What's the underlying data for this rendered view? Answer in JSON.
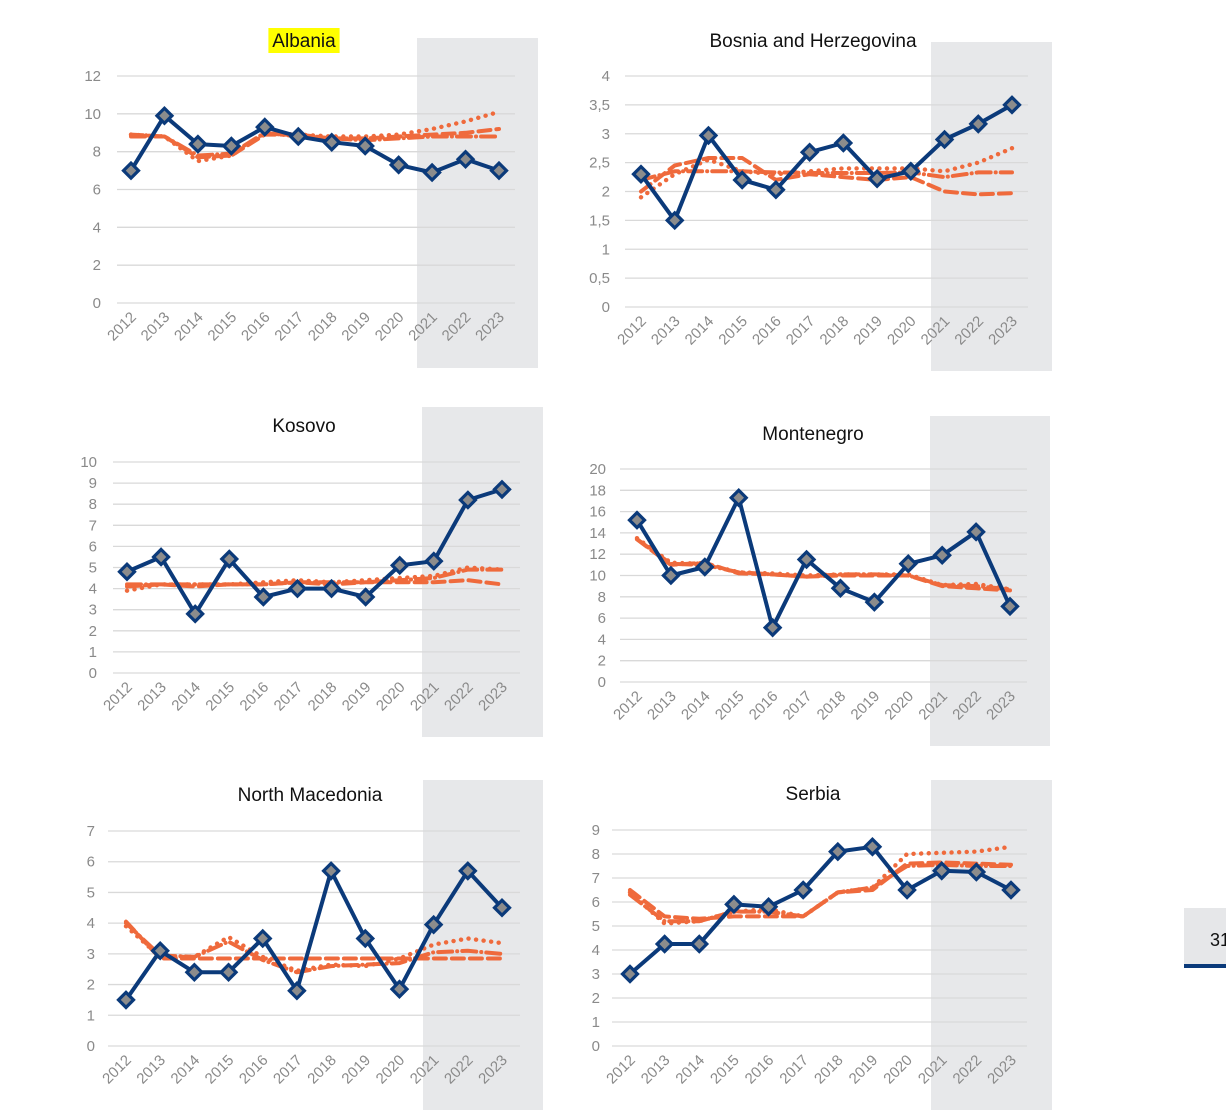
{
  "page_number_tab": "31",
  "colors": {
    "actual": "#0b3a7a",
    "marker_fill": "#8c8c8c",
    "projection": "#ef6a3c",
    "forecast_shade": "#e7e8ea",
    "title_highlight": "#ffff00"
  },
  "chart_data": [
    {
      "type": "line",
      "title": "Albania",
      "title_highlighted": true,
      "x": [
        "2012",
        "2013",
        "2014",
        "2015",
        "2016",
        "2017",
        "2018",
        "2019",
        "2020",
        "2021",
        "2022",
        "2023"
      ],
      "forecast_shaded_from": "2021",
      "ylim": [
        0,
        12
      ],
      "yticks": [
        "0",
        "2",
        "4",
        "6",
        "8",
        "10",
        "12"
      ],
      "yticks_values": [
        0,
        2,
        4,
        6,
        8,
        10,
        12
      ],
      "grid": true,
      "series": [
        {
          "name": "actual",
          "style": "solid-markers",
          "values": [
            7.0,
            9.9,
            8.4,
            8.3,
            9.3,
            8.8,
            8.5,
            8.3,
            7.3,
            6.9,
            7.6,
            7.0
          ]
        },
        {
          "name": "projection-dotted",
          "style": "dotted",
          "values": [
            8.9,
            8.8,
            7.5,
            7.8,
            9.0,
            8.9,
            8.8,
            8.8,
            8.9,
            9.2,
            9.6,
            10.1
          ]
        },
        {
          "name": "projection-dashed",
          "style": "dashed",
          "values": [
            8.9,
            8.8,
            7.7,
            7.8,
            8.9,
            8.9,
            8.7,
            8.7,
            8.8,
            8.9,
            9.0,
            9.2
          ]
        },
        {
          "name": "projection-dashdot",
          "style": "dash-dot",
          "values": [
            8.8,
            8.8,
            7.8,
            7.9,
            9.0,
            8.8,
            8.7,
            8.6,
            8.7,
            8.8,
            8.8,
            8.8
          ]
        }
      ]
    },
    {
      "type": "line",
      "title": "Bosnia and Herzegovina",
      "title_highlighted": false,
      "x": [
        "2012",
        "2013",
        "2014",
        "2015",
        "2016",
        "2017",
        "2018",
        "2019",
        "2020",
        "2021",
        "2022",
        "2023"
      ],
      "forecast_shaded_from": "2021",
      "ylim": [
        0,
        4
      ],
      "yticks": [
        "0",
        "0,5",
        "1",
        "1,5",
        "2",
        "2,5",
        "3",
        "3,5",
        "4"
      ],
      "yticks_values": [
        0,
        0.5,
        1,
        1.5,
        2,
        2.5,
        3,
        3.5,
        4
      ],
      "grid": true,
      "series": [
        {
          "name": "actual",
          "style": "solid-markers",
          "values": [
            2.3,
            1.5,
            2.97,
            2.2,
            2.03,
            2.68,
            2.84,
            2.22,
            2.35,
            2.9,
            3.17,
            3.5
          ]
        },
        {
          "name": "projection-dotted",
          "style": "dotted",
          "values": [
            1.9,
            2.3,
            2.55,
            2.35,
            2.3,
            2.35,
            2.4,
            2.4,
            2.4,
            2.35,
            2.5,
            2.75
          ]
        },
        {
          "name": "projection-dashed",
          "style": "dashed",
          "values": [
            2.0,
            2.45,
            2.58,
            2.58,
            2.2,
            2.3,
            2.25,
            2.2,
            2.25,
            2.0,
            1.95,
            1.97
          ]
        },
        {
          "name": "projection-dashdot",
          "style": "dash-dot",
          "values": [
            2.2,
            2.35,
            2.35,
            2.35,
            2.33,
            2.32,
            2.32,
            2.32,
            2.33,
            2.25,
            2.33,
            2.33
          ]
        }
      ]
    },
    {
      "type": "line",
      "title": "Kosovo",
      "title_highlighted": false,
      "x": [
        "2012",
        "2013",
        "2014",
        "2015",
        "2016",
        "2017",
        "2018",
        "2019",
        "2020",
        "2021",
        "2022",
        "2023"
      ],
      "forecast_shaded_from": "2021",
      "ylim": [
        0,
        10
      ],
      "yticks": [
        "0",
        "1",
        "2",
        "3",
        "4",
        "5",
        "6",
        "7",
        "8",
        "9",
        "10"
      ],
      "yticks_values": [
        0,
        1,
        2,
        3,
        4,
        5,
        6,
        7,
        8,
        9,
        10
      ],
      "grid": true,
      "series": [
        {
          "name": "actual",
          "style": "solid-markers",
          "values": [
            4.8,
            5.5,
            2.8,
            5.4,
            3.6,
            4.0,
            4.0,
            3.6,
            5.1,
            5.3,
            8.2,
            8.7
          ]
        },
        {
          "name": "projection-dotted",
          "style": "dotted",
          "values": [
            3.9,
            4.2,
            4.2,
            4.2,
            4.3,
            4.4,
            4.3,
            4.4,
            4.5,
            4.6,
            5.0,
            4.9
          ]
        },
        {
          "name": "projection-dashed",
          "style": "dashed",
          "values": [
            4.1,
            4.2,
            4.1,
            4.2,
            4.2,
            4.3,
            4.2,
            4.3,
            4.3,
            4.3,
            4.4,
            4.2
          ]
        },
        {
          "name": "projection-dashdot",
          "style": "dash-dot",
          "values": [
            4.2,
            4.2,
            4.2,
            4.2,
            4.2,
            4.3,
            4.3,
            4.3,
            4.4,
            4.5,
            4.9,
            4.9
          ]
        }
      ]
    },
    {
      "type": "line",
      "title": "Montenegro",
      "title_highlighted": false,
      "x": [
        "2012",
        "2013",
        "2014",
        "2015",
        "2016",
        "2017",
        "2018",
        "2019",
        "2020",
        "2021",
        "2022",
        "2023"
      ],
      "forecast_shaded_from": "2021",
      "ylim": [
        0,
        20
      ],
      "yticks": [
        "0",
        "2",
        "4",
        "6",
        "8",
        "10",
        "12",
        "14",
        "16",
        "18",
        "20"
      ],
      "yticks_values": [
        0,
        2,
        4,
        6,
        8,
        10,
        12,
        14,
        16,
        18,
        20
      ],
      "grid": true,
      "series": [
        {
          "name": "actual",
          "style": "solid-markers",
          "values": [
            15.2,
            10.0,
            10.8,
            17.3,
            5.1,
            11.5,
            8.8,
            7.5,
            11.1,
            11.9,
            14.1,
            7.1
          ]
        },
        {
          "name": "projection-dotted",
          "style": "dotted",
          "values": [
            13.5,
            11.2,
            11.1,
            10.3,
            10.2,
            10.0,
            10.1,
            10.1,
            10.1,
            9.1,
            9.2,
            8.7
          ]
        },
        {
          "name": "projection-dashed",
          "style": "dashed",
          "values": [
            13.4,
            11.0,
            11.2,
            10.2,
            10.1,
            9.9,
            10.0,
            10.0,
            10.0,
            9.0,
            8.8,
            8.6
          ]
        },
        {
          "name": "projection-dashdot",
          "style": "dash-dot",
          "values": [
            13.4,
            11.1,
            11.0,
            10.3,
            10.1,
            9.9,
            10.1,
            10.1,
            10.0,
            9.1,
            9.0,
            8.7
          ]
        }
      ]
    },
    {
      "type": "line",
      "title": "North Macedonia",
      "title_highlighted": false,
      "x": [
        "2012",
        "2013",
        "2014",
        "2015",
        "2016",
        "2017",
        "2018",
        "2019",
        "2020",
        "2021",
        "2022",
        "2023"
      ],
      "forecast_shaded_from": "2021",
      "ylim": [
        0,
        7
      ],
      "yticks": [
        "0",
        "1",
        "2",
        "3",
        "4",
        "5",
        "6",
        "7"
      ],
      "yticks_values": [
        0,
        1,
        2,
        3,
        4,
        5,
        6,
        7
      ],
      "grid": true,
      "series": [
        {
          "name": "actual",
          "style": "solid-markers",
          "values": [
            1.5,
            3.1,
            2.4,
            2.4,
            3.5,
            1.8,
            5.7,
            3.5,
            1.85,
            3.95,
            5.7,
            4.5
          ]
        },
        {
          "name": "projection-dotted",
          "style": "dotted",
          "values": [
            3.9,
            2.9,
            2.9,
            3.55,
            2.9,
            2.45,
            2.65,
            2.6,
            2.85,
            3.3,
            3.5,
            3.35
          ]
        },
        {
          "name": "projection-dashed",
          "style": "dashed",
          "values": [
            4.05,
            2.85,
            2.85,
            2.85,
            2.85,
            2.85,
            2.85,
            2.85,
            2.85,
            2.85,
            2.85,
            2.85
          ]
        },
        {
          "name": "projection-dashdot",
          "style": "dash-dot",
          "values": [
            4.0,
            2.95,
            2.9,
            3.4,
            2.8,
            2.4,
            2.6,
            2.65,
            2.7,
            3.05,
            3.1,
            3.0
          ]
        }
      ]
    },
    {
      "type": "line",
      "title": "Serbia",
      "title_highlighted": false,
      "x": [
        "2012",
        "2013",
        "2014",
        "2015",
        "2016",
        "2017",
        "2018",
        "2019",
        "2020",
        "2021",
        "2022",
        "2023"
      ],
      "forecast_shaded_from": "2021",
      "ylim": [
        0,
        9
      ],
      "yticks": [
        "0",
        "1",
        "2",
        "3",
        "4",
        "5",
        "6",
        "7",
        "8",
        "9"
      ],
      "yticks_values": [
        0,
        1,
        2,
        3,
        4,
        5,
        6,
        7,
        8,
        9
      ],
      "grid": true,
      "series": [
        {
          "name": "actual",
          "style": "solid-markers",
          "values": [
            3.0,
            4.25,
            4.25,
            5.9,
            5.8,
            6.5,
            8.1,
            8.3,
            6.5,
            7.3,
            7.25,
            6.5
          ]
        },
        {
          "name": "projection-dotted",
          "style": "dotted",
          "values": [
            6.4,
            5.1,
            5.2,
            5.6,
            5.7,
            5.4,
            6.4,
            6.6,
            8.0,
            8.05,
            8.1,
            8.3
          ]
        },
        {
          "name": "projection-dashed",
          "style": "dashed",
          "values": [
            6.5,
            5.4,
            5.3,
            5.4,
            5.4,
            5.4,
            6.4,
            6.5,
            7.6,
            7.65,
            7.6,
            7.55
          ]
        },
        {
          "name": "projection-dashdot",
          "style": "dash-dot",
          "values": [
            6.3,
            5.2,
            5.2,
            5.6,
            5.6,
            5.4,
            6.4,
            6.6,
            7.5,
            7.55,
            7.5,
            7.5
          ]
        }
      ]
    }
  ]
}
